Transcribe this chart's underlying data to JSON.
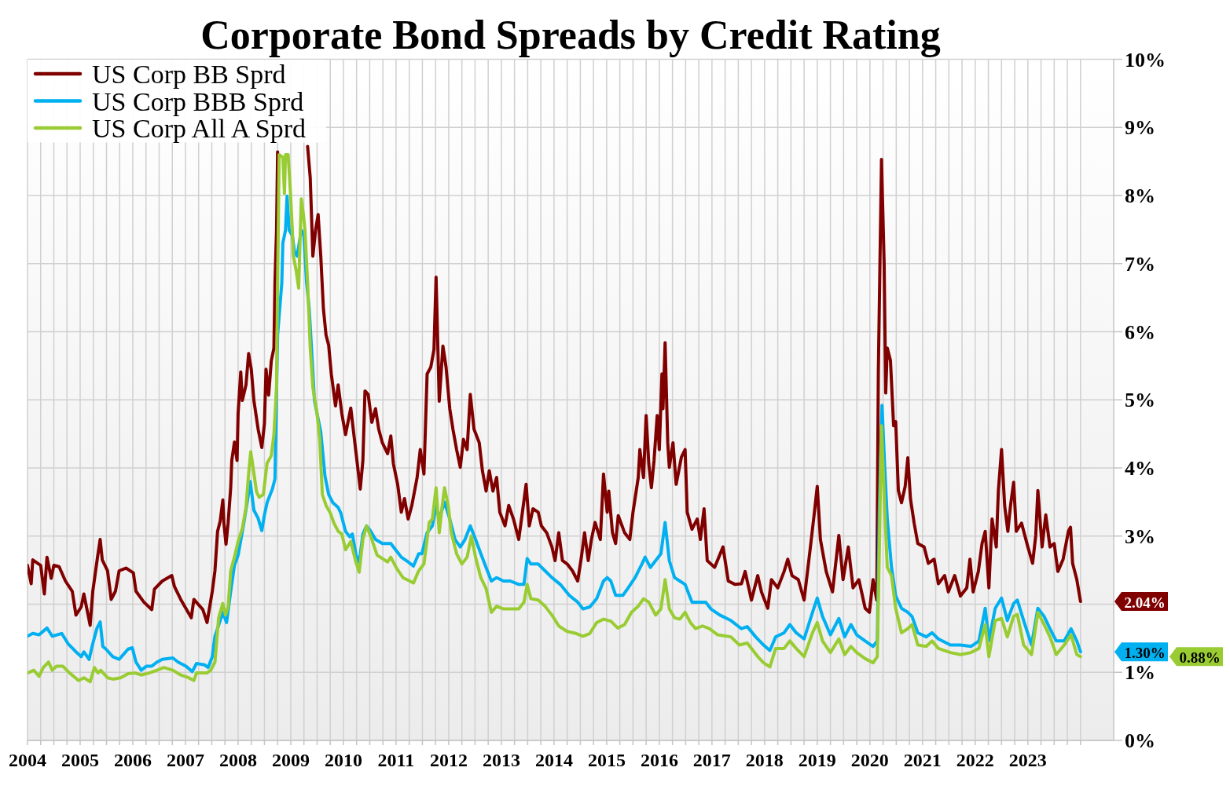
{
  "chart_data": {
    "type": "line",
    "title": "Corporate Bond Spreads by Credit Rating",
    "xlim": [
      2004,
      2024.63
    ],
    "xticks": [
      2004,
      {
        "value": 2004.25,
        "label": null
      },
      {
        "value": 2004.5,
        "label": null
      },
      {
        "value": 2004.75,
        "label": null
      },
      2005,
      {
        "value": 2005.25,
        "label": null
      },
      {
        "value": 2005.5,
        "label": null
      },
      {
        "value": 2005.75,
        "label": null
      },
      2006,
      {
        "value": 2006.25,
        "label": null
      },
      {
        "value": 2006.5,
        "label": null
      },
      {
        "value": 2006.75,
        "label": null
      },
      2007,
      {
        "value": 2007.25,
        "label": null
      },
      {
        "value": 2007.5,
        "label": null
      },
      {
        "value": 2007.75,
        "label": null
      },
      2008,
      {
        "value": 2008.25,
        "label": null
      },
      {
        "value": 2008.5,
        "label": null
      },
      {
        "value": 2008.75,
        "label": null
      },
      2009,
      {
        "value": 2009.25,
        "label": null
      },
      {
        "value": 2009.5,
        "label": null
      },
      {
        "value": 2009.75,
        "label": null
      },
      2010,
      {
        "value": 2010.25,
        "label": null
      },
      {
        "value": 2010.5,
        "label": null
      },
      {
        "value": 2010.75,
        "label": null
      },
      2011,
      {
        "value": 2011.25,
        "label": null
      },
      {
        "value": 2011.5,
        "label": null
      },
      {
        "value": 2011.75,
        "label": null
      },
      2012,
      {
        "value": 2012.25,
        "label": null
      },
      {
        "value": 2012.5,
        "label": null
      },
      {
        "value": 2012.75,
        "label": null
      },
      2013,
      {
        "value": 2013.25,
        "label": null
      },
      {
        "value": 2013.5,
        "label": null
      },
      {
        "value": 2013.75,
        "label": null
      },
      2014,
      {
        "value": 2014.25,
        "label": null
      },
      {
        "value": 2014.5,
        "label": null
      },
      {
        "value": 2014.75,
        "label": null
      },
      2015,
      {
        "value": 2015.25,
        "label": null
      },
      {
        "value": 2015.5,
        "label": null
      },
      {
        "value": 2015.75,
        "label": null
      },
      2016,
      {
        "value": 2016.25,
        "label": null
      },
      {
        "value": 2016.5,
        "label": null
      },
      {
        "value": 2016.75,
        "label": null
      },
      2017,
      {
        "value": 2017.25,
        "label": null
      },
      {
        "value": 2017.5,
        "label": null
      },
      {
        "value": 2017.75,
        "label": null
      },
      2018,
      {
        "value": 2018.25,
        "label": null
      },
      {
        "value": 2018.5,
        "label": null
      },
      {
        "value": 2018.75,
        "label": null
      },
      2019,
      {
        "value": 2019.25,
        "label": null
      },
      {
        "value": 2019.5,
        "label": null
      },
      {
        "value": 2019.75,
        "label": null
      },
      2020,
      {
        "value": 2020.25,
        "label": null
      },
      {
        "value": 2020.5,
        "label": null
      },
      {
        "value": 2020.75,
        "label": null
      },
      2021,
      {
        "value": 2021.25,
        "label": null
      },
      {
        "value": 2021.5,
        "label": null
      },
      {
        "value": 2021.75,
        "label": null
      },
      2022,
      {
        "value": 2022.25,
        "label": null
      },
      {
        "value": 2022.5,
        "label": null
      },
      {
        "value": 2022.75,
        "label": null
      },
      2023,
      {
        "value": 2023.25,
        "label": null
      },
      {
        "value": 2023.5,
        "label": null
      },
      {
        "value": 2023.75,
        "label": null
      },
      {
        "value": 2024,
        "label": null
      }
    ],
    "ylim": [
      0,
      10
    ],
    "yticks": [
      {
        "value": 0,
        "label": "0%"
      },
      {
        "value": 1,
        "label": "1%"
      },
      {
        "value": 2,
        "label": null
      },
      {
        "value": 3,
        "label": "3%"
      },
      {
        "value": 4,
        "label": "4%"
      },
      {
        "value": 5,
        "label": "5%"
      },
      {
        "value": 6,
        "label": "6%"
      },
      {
        "value": 7,
        "label": "7%"
      },
      {
        "value": 8,
        "label": "8%"
      },
      {
        "value": 9,
        "label": "9%"
      },
      {
        "value": 10,
        "label": "10%"
      }
    ],
    "grid": true,
    "legend": "top left",
    "series": [
      {
        "name": "US Corp BB Sprd",
        "color": "#800000",
        "x": [
          2004.0,
          2004.07,
          2004.1,
          2004.25,
          2004.32,
          2004.37,
          2004.45,
          2004.5,
          2004.6,
          2004.72,
          2004.85,
          2004.92,
          2005.02,
          2005.07,
          2005.19,
          2005.24,
          2005.33,
          2005.38,
          2005.42,
          2005.52,
          2005.59,
          2005.67,
          2005.74,
          2005.87,
          2006.01,
          2006.06,
          2006.21,
          2006.36,
          2006.41,
          2006.56,
          2006.74,
          2006.79,
          2006.91,
          2007.11,
          2007.16,
          2007.33,
          2007.41,
          2007.51,
          2007.56,
          2007.61,
          2007.66,
          2007.71,
          2007.73,
          2007.77,
          2007.81,
          2007.86,
          2007.88,
          2007.93,
          2007.98,
          2008.0,
          2008.05,
          2008.08,
          2008.15,
          2008.2,
          2008.25,
          2008.3,
          2008.38,
          2008.45,
          2008.5,
          2008.53,
          2008.58,
          2008.63,
          2008.68,
          2008.7,
          2008.73,
          2008.75,
          2009.0,
          2009.32,
          2009.37,
          2009.42,
          2009.47,
          2009.52,
          2009.57,
          2009.62,
          2009.67,
          2009.72,
          2009.77,
          2009.85,
          2009.9,
          2009.97,
          2010.04,
          2010.14,
          2010.24,
          2010.32,
          2010.37,
          2010.41,
          2010.47,
          2010.54,
          2010.61,
          2010.67,
          2010.74,
          2010.84,
          2010.9,
          2010.95,
          2011.03,
          2011.1,
          2011.16,
          2011.23,
          2011.3,
          2011.4,
          2011.46,
          2011.53,
          2011.59,
          2011.66,
          2011.72,
          2011.76,
          2011.82,
          2011.89,
          2011.95,
          2012.02,
          2012.08,
          2012.15,
          2012.22,
          2012.28,
          2012.35,
          2012.41,
          2012.48,
          2012.58,
          2012.64,
          2012.71,
          2012.77,
          2012.84,
          2012.91,
          2012.97,
          2013.07,
          2013.14,
          2013.23,
          2013.33,
          2013.4,
          2013.47,
          2013.53,
          2013.6,
          2013.7,
          2013.76,
          2013.86,
          2013.96,
          2014.02,
          2014.09,
          2014.16,
          2014.25,
          2014.35,
          2014.45,
          2014.52,
          2014.58,
          2014.65,
          2014.71,
          2014.78,
          2014.88,
          2014.94,
          2015.01,
          2015.04,
          2015.11,
          2015.17,
          2015.22,
          2015.34,
          2015.44,
          2015.5,
          2015.6,
          2015.63,
          2015.7,
          2015.75,
          2015.8,
          2015.85,
          2015.9,
          2015.96,
          2016.0,
          2016.05,
          2016.07,
          2016.11,
          2016.16,
          2016.19,
          2016.26,
          2016.32,
          2016.42,
          2016.49,
          2016.53,
          2016.62,
          2016.72,
          2016.78,
          2016.85,
          2016.91,
          2017.05,
          2017.21,
          2017.31,
          2017.44,
          2017.56,
          2017.63,
          2017.75,
          2017.87,
          2017.94,
          2018.06,
          2018.13,
          2018.25,
          2018.37,
          2018.44,
          2018.52,
          2018.64,
          2018.75,
          2018.87,
          2018.94,
          2019.0,
          2019.06,
          2019.17,
          2019.29,
          2019.41,
          2019.49,
          2019.59,
          2019.68,
          2019.79,
          2019.91,
          2019.99,
          2020.06,
          2020.13,
          2020.16,
          2020.22,
          2020.27,
          2020.3,
          2020.33,
          2020.39,
          2020.45,
          2020.49,
          2020.54,
          2020.6,
          2020.67,
          2020.72,
          2020.77,
          2020.84,
          2020.91,
          2021.03,
          2021.11,
          2021.22,
          2021.3,
          2021.42,
          2021.49,
          2021.61,
          2021.72,
          2021.84,
          2021.9,
          2021.96,
          2022.06,
          2022.13,
          2022.19,
          2022.26,
          2022.32,
          2022.4,
          2022.44,
          2022.5,
          2022.56,
          2022.62,
          2022.67,
          2022.73,
          2022.78,
          2022.88,
          2023.0,
          2023.09,
          2023.15,
          2023.19,
          2023.27,
          2023.34,
          2023.42,
          2023.5,
          2023.57,
          2023.67,
          2023.77,
          2023.81,
          2023.85,
          2023.93,
          2024.0
        ],
        "values": [
          2.57,
          2.3,
          2.65,
          2.57,
          2.15,
          2.69,
          2.38,
          2.57,
          2.55,
          2.34,
          2.19,
          1.84,
          1.96,
          2.15,
          1.69,
          2.19,
          2.69,
          2.95,
          2.65,
          2.49,
          2.07,
          2.19,
          2.49,
          2.53,
          2.46,
          2.19,
          2.03,
          1.92,
          2.22,
          2.34,
          2.42,
          2.26,
          2.07,
          1.8,
          2.07,
          1.92,
          1.73,
          2.19,
          2.49,
          3.07,
          3.22,
          3.53,
          3.19,
          2.88,
          3.19,
          3.72,
          4.11,
          4.38,
          4.11,
          4.8,
          5.41,
          4.99,
          5.22,
          5.68,
          5.45,
          4.99,
          4.57,
          4.3,
          4.65,
          5.45,
          5.07,
          5.57,
          5.76,
          6.72,
          7.49,
          8.64,
          null,
          8.72,
          8.26,
          7.11,
          7.49,
          7.72,
          7.11,
          6.34,
          5.95,
          5.8,
          5.38,
          4.91,
          5.22,
          4.8,
          4.49,
          4.88,
          4.22,
          3.69,
          4.11,
          5.13,
          5.08,
          4.67,
          4.87,
          4.57,
          4.37,
          4.21,
          4.47,
          4.06,
          3.76,
          3.35,
          3.55,
          3.25,
          3.45,
          3.86,
          4.27,
          3.91,
          5.38,
          5.48,
          5.74,
          6.8,
          4.98,
          5.79,
          5.48,
          4.87,
          4.57,
          4.27,
          4.01,
          4.42,
          4.27,
          5.08,
          4.57,
          4.37,
          3.96,
          3.66,
          3.96,
          3.66,
          3.86,
          3.35,
          3.15,
          3.45,
          3.25,
          2.95,
          3.35,
          3.76,
          3.15,
          3.4,
          3.35,
          3.15,
          3.05,
          2.84,
          2.64,
          3.05,
          2.64,
          2.59,
          2.49,
          2.34,
          2.69,
          3.05,
          2.64,
          2.95,
          3.2,
          2.95,
          3.91,
          3.35,
          3.66,
          3.05,
          2.89,
          3.3,
          3.05,
          2.95,
          3.35,
          3.86,
          4.27,
          3.86,
          4.77,
          4.06,
          3.71,
          4.11,
          4.77,
          4.27,
          5.38,
          4.87,
          5.84,
          4.37,
          4.01,
          4.37,
          3.76,
          4.16,
          4.27,
          3.35,
          3.1,
          3.25,
          2.95,
          3.4,
          2.64,
          2.54,
          2.84,
          2.34,
          2.29,
          2.3,
          2.48,
          2.06,
          2.42,
          2.18,
          1.94,
          2.36,
          2.24,
          2.48,
          2.66,
          2.42,
          2.36,
          2.06,
          2.84,
          3.31,
          3.73,
          2.95,
          2.48,
          2.18,
          3.01,
          2.36,
          2.84,
          2.24,
          2.36,
          1.94,
          1.88,
          2.36,
          2.06,
          5.4,
          8.53,
          7.01,
          5.1,
          5.76,
          5.58,
          4.62,
          4.68,
          3.67,
          3.49,
          3.73,
          4.15,
          3.55,
          3.19,
          2.89,
          2.84,
          2.6,
          2.66,
          2.3,
          2.42,
          2.18,
          2.42,
          2.12,
          2.24,
          2.66,
          2.18,
          2.48,
          2.89,
          3.07,
          2.24,
          3.25,
          2.84,
          3.67,
          4.27,
          3.44,
          3.07,
          3.44,
          3.79,
          3.07,
          3.19,
          2.84,
          2.6,
          3.01,
          3.67,
          2.84,
          3.31,
          2.84,
          2.89,
          2.48,
          2.66,
          3.07,
          3.13,
          2.6,
          2.36,
          2.04
        ]
      },
      {
        "name": "US Corp BBB Sprd",
        "color": "#00b0f0",
        "x": [
          2004.0,
          2004.1,
          2004.22,
          2004.37,
          2004.47,
          2004.65,
          2004.77,
          2004.92,
          2005.02,
          2005.07,
          2005.17,
          2005.24,
          2005.32,
          2005.38,
          2005.43,
          2005.49,
          2005.62,
          2005.74,
          2005.82,
          2005.91,
          2005.99,
          2006.06,
          2006.16,
          2006.26,
          2006.36,
          2006.46,
          2006.56,
          2006.76,
          2006.86,
          2007.01,
          2007.13,
          2007.21,
          2007.36,
          2007.43,
          2007.51,
          2007.56,
          2007.63,
          2007.71,
          2007.78,
          2007.86,
          2007.93,
          2008.0,
          2008.1,
          2008.18,
          2008.23,
          2008.3,
          2008.38,
          2008.45,
          2008.5,
          2008.55,
          2008.65,
          2008.7,
          2008.75,
          2008.83,
          2008.85,
          2008.9,
          2008.93,
          2008.97,
          2009.03,
          2009.07,
          2009.12,
          2009.2,
          2009.25,
          2009.3,
          2009.35,
          2009.4,
          2009.45,
          2009.52,
          2009.57,
          2009.65,
          2009.72,
          2009.8,
          2009.9,
          2009.95,
          2010.04,
          2010.12,
          2010.17,
          2010.24,
          2010.3,
          2010.37,
          2010.44,
          2010.52,
          2010.61,
          2010.74,
          2010.9,
          2011.0,
          2011.1,
          2011.23,
          2011.33,
          2011.43,
          2011.49,
          2011.59,
          2011.69,
          2011.76,
          2011.82,
          2011.92,
          2012.02,
          2012.12,
          2012.22,
          2012.31,
          2012.41,
          2012.51,
          2012.61,
          2012.71,
          2012.81,
          2012.91,
          2013.04,
          2013.17,
          2013.33,
          2013.43,
          2013.49,
          2013.56,
          2013.7,
          2013.83,
          2013.96,
          2014.12,
          2014.29,
          2014.45,
          2014.55,
          2014.68,
          2014.81,
          2014.94,
          2015.01,
          2015.08,
          2015.17,
          2015.31,
          2015.4,
          2015.54,
          2015.67,
          2015.73,
          2015.83,
          2015.93,
          2016.03,
          2016.11,
          2016.19,
          2016.29,
          2016.39,
          2016.49,
          2016.62,
          2016.75,
          2016.88,
          2016.98,
          2017.15,
          2017.36,
          2017.56,
          2017.67,
          2017.83,
          2017.98,
          2018.1,
          2018.21,
          2018.37,
          2018.48,
          2018.6,
          2018.75,
          2018.91,
          2019.0,
          2019.1,
          2019.25,
          2019.41,
          2019.52,
          2019.64,
          2019.75,
          2019.91,
          2020.06,
          2020.14,
          2020.18,
          2020.23,
          2020.28,
          2020.33,
          2020.41,
          2020.49,
          2020.6,
          2020.72,
          2020.8,
          2020.91,
          2021.07,
          2021.18,
          2021.3,
          2021.53,
          2021.72,
          2021.92,
          2022.07,
          2022.19,
          2022.26,
          2022.38,
          2022.5,
          2022.61,
          2022.73,
          2022.8,
          2022.92,
          2023.07,
          2023.19,
          2023.31,
          2023.42,
          2023.54,
          2023.69,
          2023.82,
          2023.93,
          2024.0
        ],
        "values": [
          1.53,
          1.57,
          1.55,
          1.65,
          1.53,
          1.57,
          1.42,
          1.3,
          1.23,
          1.3,
          1.19,
          1.42,
          1.65,
          1.74,
          1.38,
          1.34,
          1.23,
          1.19,
          1.26,
          1.34,
          1.36,
          1.15,
          1.03,
          1.09,
          1.09,
          1.15,
          1.19,
          1.21,
          1.15,
          1.09,
          1.01,
          1.13,
          1.11,
          1.07,
          1.23,
          1.53,
          1.69,
          1.88,
          1.73,
          2.19,
          2.57,
          2.72,
          3.15,
          3.53,
          3.8,
          3.38,
          3.26,
          3.08,
          3.31,
          3.49,
          3.69,
          3.84,
          5.95,
          6.72,
          7.3,
          7.49,
          7.99,
          7.49,
          7.41,
          7.18,
          7.11,
          7.49,
          7.41,
          6.72,
          6.34,
          5.68,
          4.99,
          4.72,
          4.53,
          3.88,
          3.61,
          3.49,
          3.42,
          3.34,
          3.07,
          2.99,
          3.03,
          2.72,
          2.61,
          3.03,
          3.15,
          3.07,
          2.95,
          2.89,
          2.89,
          2.79,
          2.69,
          2.62,
          2.56,
          2.74,
          2.74,
          3.05,
          3.15,
          3.45,
          3.25,
          3.5,
          3.25,
          2.95,
          2.84,
          2.95,
          3.15,
          2.95,
          2.74,
          2.54,
          2.34,
          2.39,
          2.34,
          2.34,
          2.29,
          2.29,
          2.67,
          2.59,
          2.59,
          2.49,
          2.39,
          2.29,
          2.13,
          2.03,
          1.93,
          1.96,
          2.08,
          2.34,
          2.39,
          2.34,
          2.13,
          2.13,
          2.23,
          2.39,
          2.59,
          2.69,
          2.54,
          2.64,
          2.74,
          3.2,
          2.64,
          2.39,
          2.34,
          2.29,
          2.03,
          2.03,
          2.03,
          1.93,
          1.84,
          1.76,
          1.64,
          1.67,
          1.52,
          1.4,
          1.32,
          1.52,
          1.58,
          1.7,
          1.58,
          1.49,
          1.88,
          2.09,
          1.82,
          1.55,
          1.79,
          1.52,
          1.7,
          1.55,
          1.46,
          1.38,
          1.46,
          3.43,
          4.92,
          4.03,
          3.25,
          2.54,
          2.12,
          1.94,
          1.88,
          1.82,
          1.58,
          1.52,
          1.58,
          1.49,
          1.4,
          1.4,
          1.38,
          1.46,
          1.94,
          1.46,
          1.94,
          2.09,
          1.76,
          2.01,
          2.06,
          1.76,
          1.4,
          1.94,
          1.82,
          1.64,
          1.46,
          1.46,
          1.64,
          1.46,
          1.3
        ]
      },
      {
        "name": "US Corp All A Sprd",
        "color": "#99cc33",
        "x": [
          2004.0,
          2004.12,
          2004.22,
          2004.3,
          2004.4,
          2004.47,
          2004.55,
          2004.67,
          2004.8,
          2004.97,
          2005.07,
          2005.19,
          2005.27,
          2005.34,
          2005.39,
          2005.52,
          2005.62,
          2005.77,
          2005.91,
          2006.04,
          2006.16,
          2006.31,
          2006.46,
          2006.59,
          2006.76,
          2006.91,
          2007.06,
          2007.16,
          2007.21,
          2007.41,
          2007.48,
          2007.56,
          2007.63,
          2007.71,
          2007.76,
          2007.81,
          2007.86,
          2007.93,
          2008.0,
          2008.08,
          2008.15,
          2008.2,
          2008.24,
          2008.28,
          2008.35,
          2008.4,
          2008.48,
          2008.55,
          2008.63,
          2008.68,
          2008.73,
          2008.75,
          2008.78,
          2008.85,
          2008.88,
          2008.9,
          2008.95,
          2008.99,
          2009.03,
          2009.05,
          2009.1,
          2009.15,
          2009.2,
          2009.24,
          2009.27,
          2009.32,
          2009.37,
          2009.42,
          2009.5,
          2009.55,
          2009.6,
          2009.67,
          2009.75,
          2009.82,
          2009.9,
          2009.97,
          2010.04,
          2010.14,
          2010.24,
          2010.3,
          2010.37,
          2010.44,
          2010.54,
          2010.64,
          2010.7,
          2010.84,
          2010.9,
          2011.0,
          2011.13,
          2011.26,
          2011.33,
          2011.43,
          2011.53,
          2011.63,
          2011.69,
          2011.76,
          2011.82,
          2011.87,
          2011.92,
          2011.99,
          2012.05,
          2012.15,
          2012.25,
          2012.35,
          2012.43,
          2012.51,
          2012.61,
          2012.71,
          2012.81,
          2012.91,
          2013.04,
          2013.17,
          2013.33,
          2013.43,
          2013.49,
          2013.56,
          2013.7,
          2013.83,
          2013.96,
          2014.09,
          2014.25,
          2014.42,
          2014.55,
          2014.68,
          2014.81,
          2014.94,
          2015.08,
          2015.21,
          2015.34,
          2015.47,
          2015.6,
          2015.7,
          2015.8,
          2015.93,
          2016.03,
          2016.11,
          2016.19,
          2016.29,
          2016.39,
          2016.49,
          2016.59,
          2016.69,
          2016.82,
          2016.95,
          2017.11,
          2017.36,
          2017.52,
          2017.67,
          2017.87,
          2017.98,
          2018.1,
          2018.21,
          2018.37,
          2018.48,
          2018.6,
          2018.75,
          2018.91,
          2019.0,
          2019.1,
          2019.25,
          2019.41,
          2019.52,
          2019.64,
          2019.75,
          2019.91,
          2020.06,
          2020.14,
          2020.18,
          2020.22,
          2020.28,
          2020.33,
          2020.41,
          2020.49,
          2020.6,
          2020.72,
          2020.8,
          2020.91,
          2021.07,
          2021.18,
          2021.3,
          2021.53,
          2021.72,
          2021.92,
          2022.07,
          2022.19,
          2022.26,
          2022.38,
          2022.5,
          2022.61,
          2022.73,
          2022.8,
          2022.92,
          2023.07,
          2023.19,
          2023.31,
          2023.42,
          2023.54,
          2023.69,
          2023.82,
          2023.93,
          2024.0
        ],
        "values": [
          0.99,
          1.03,
          0.94,
          1.07,
          1.15,
          1.03,
          1.09,
          1.09,
          0.99,
          0.88,
          0.92,
          0.86,
          1.07,
          0.99,
          1.03,
          0.92,
          0.9,
          0.92,
          0.98,
          0.99,
          0.96,
          0.99,
          1.03,
          1.07,
          1.03,
          0.96,
          0.92,
          0.88,
          0.99,
          0.99,
          1.03,
          1.15,
          1.8,
          2.01,
          1.84,
          1.96,
          2.49,
          2.69,
          2.92,
          3.11,
          3.42,
          3.92,
          4.24,
          4.03,
          3.65,
          3.57,
          3.61,
          4.07,
          4.18,
          4.49,
          5.18,
          6.72,
          8.6,
          8.56,
          8.03,
          8.6,
          8.6,
          8.1,
          7.49,
          7.11,
          6.91,
          6.64,
          7.95,
          7.72,
          7.49,
          6.72,
          5.76,
          5.18,
          4.8,
          4.42,
          3.61,
          3.45,
          3.34,
          3.19,
          3.07,
          3.03,
          2.8,
          2.92,
          2.61,
          2.47,
          2.95,
          3.15,
          2.95,
          2.72,
          2.69,
          2.62,
          2.69,
          2.54,
          2.39,
          2.34,
          2.31,
          2.49,
          2.59,
          3.2,
          3.25,
          3.71,
          3.05,
          3.4,
          3.71,
          3.45,
          3.05,
          2.74,
          2.59,
          2.69,
          3.0,
          2.69,
          2.39,
          2.23,
          1.88,
          1.97,
          1.93,
          1.93,
          1.93,
          2.03,
          2.29,
          2.08,
          2.06,
          1.97,
          1.84,
          1.68,
          1.6,
          1.57,
          1.53,
          1.57,
          1.73,
          1.78,
          1.75,
          1.65,
          1.7,
          1.88,
          1.97,
          2.08,
          2.03,
          1.84,
          1.93,
          2.36,
          1.93,
          1.8,
          1.78,
          1.88,
          1.73,
          1.64,
          1.68,
          1.64,
          1.55,
          1.52,
          1.4,
          1.43,
          1.23,
          1.14,
          1.08,
          1.35,
          1.35,
          1.46,
          1.35,
          1.23,
          1.58,
          1.73,
          1.46,
          1.29,
          1.49,
          1.26,
          1.38,
          1.29,
          1.2,
          1.14,
          1.23,
          2.84,
          4.62,
          3.43,
          2.54,
          2.42,
          1.94,
          1.58,
          1.64,
          1.7,
          1.4,
          1.38,
          1.46,
          1.35,
          1.29,
          1.26,
          1.29,
          1.35,
          1.7,
          1.23,
          1.76,
          1.79,
          1.52,
          1.82,
          1.85,
          1.4,
          1.26,
          1.88,
          1.7,
          1.52,
          1.26,
          1.4,
          1.55,
          1.26,
          1.23
        ]
      }
    ],
    "annotations": [
      "2.04%",
      "1.30%",
      "0.88%"
    ]
  }
}
